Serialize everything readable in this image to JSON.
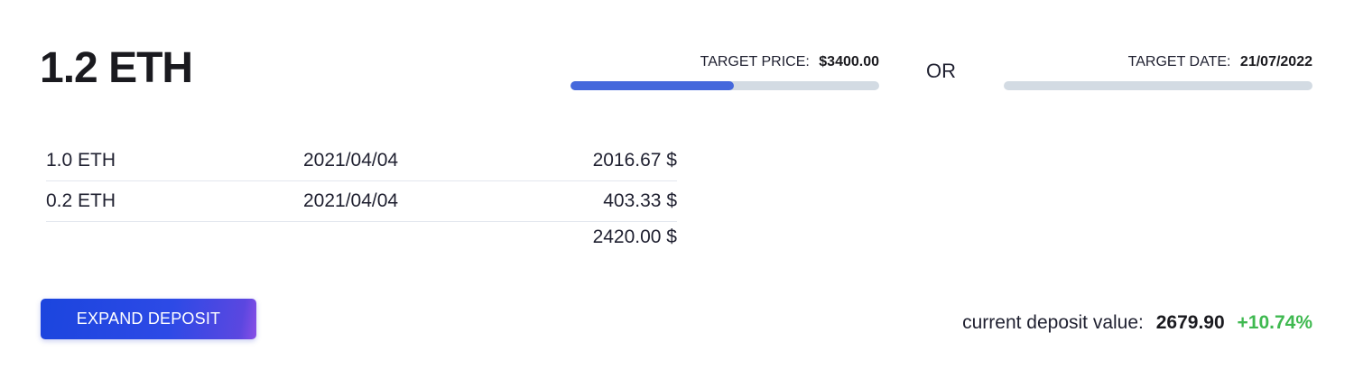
{
  "header": {
    "title": "1.2 ETH"
  },
  "targets": {
    "price": {
      "label": "TARGET PRICE:",
      "value": "$3400.00",
      "progress_percent": 53
    },
    "separator": "OR",
    "date": {
      "label": "TARGET DATE:",
      "value": "21/07/2022",
      "progress_percent": 0
    }
  },
  "deposits": {
    "rows": [
      {
        "amount": "1.0 ETH",
        "date": "2021/04/04",
        "value": "2016.67 $"
      },
      {
        "amount": "0.2 ETH",
        "date": "2021/04/04",
        "value": "403.33 $"
      }
    ],
    "total": "2420.00 $"
  },
  "actions": {
    "expand_label": "EXPAND DEPOSIT"
  },
  "summary": {
    "label": "current deposit value:",
    "value": "2679.90",
    "change": "+10.74%"
  },
  "colors": {
    "progress_fill": "#4568dc",
    "progress_track": "#d3dbe3",
    "positive_change": "#3fb950",
    "button_primary": "#1b45de"
  }
}
